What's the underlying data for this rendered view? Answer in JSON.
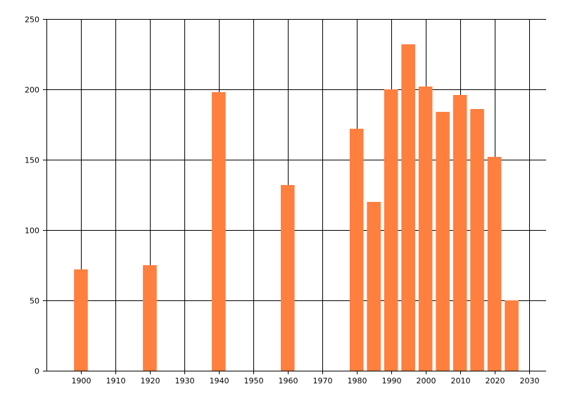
{
  "chart_data": {
    "type": "bar",
    "title": "",
    "xlabel": "",
    "ylabel": "",
    "x": [
      1900,
      1920,
      1940,
      1960,
      1980,
      1985,
      1990,
      1995,
      2000,
      2005,
      2010,
      2015,
      2020,
      2025
    ],
    "values": [
      72,
      75,
      198,
      132,
      172,
      120,
      200,
      232,
      202,
      184,
      196,
      186,
      152,
      50
    ],
    "xlim": [
      1890,
      2035
    ],
    "ylim": [
      0,
      250
    ],
    "x_ticks": [
      1900,
      1910,
      1920,
      1930,
      1940,
      1950,
      1960,
      1970,
      1980,
      1990,
      2000,
      2010,
      2020,
      2030
    ],
    "y_ticks": [
      0,
      50,
      100,
      150,
      200,
      250
    ],
    "grid": true,
    "bar_color": "#ff7f3f",
    "grid_color": "#000000"
  }
}
